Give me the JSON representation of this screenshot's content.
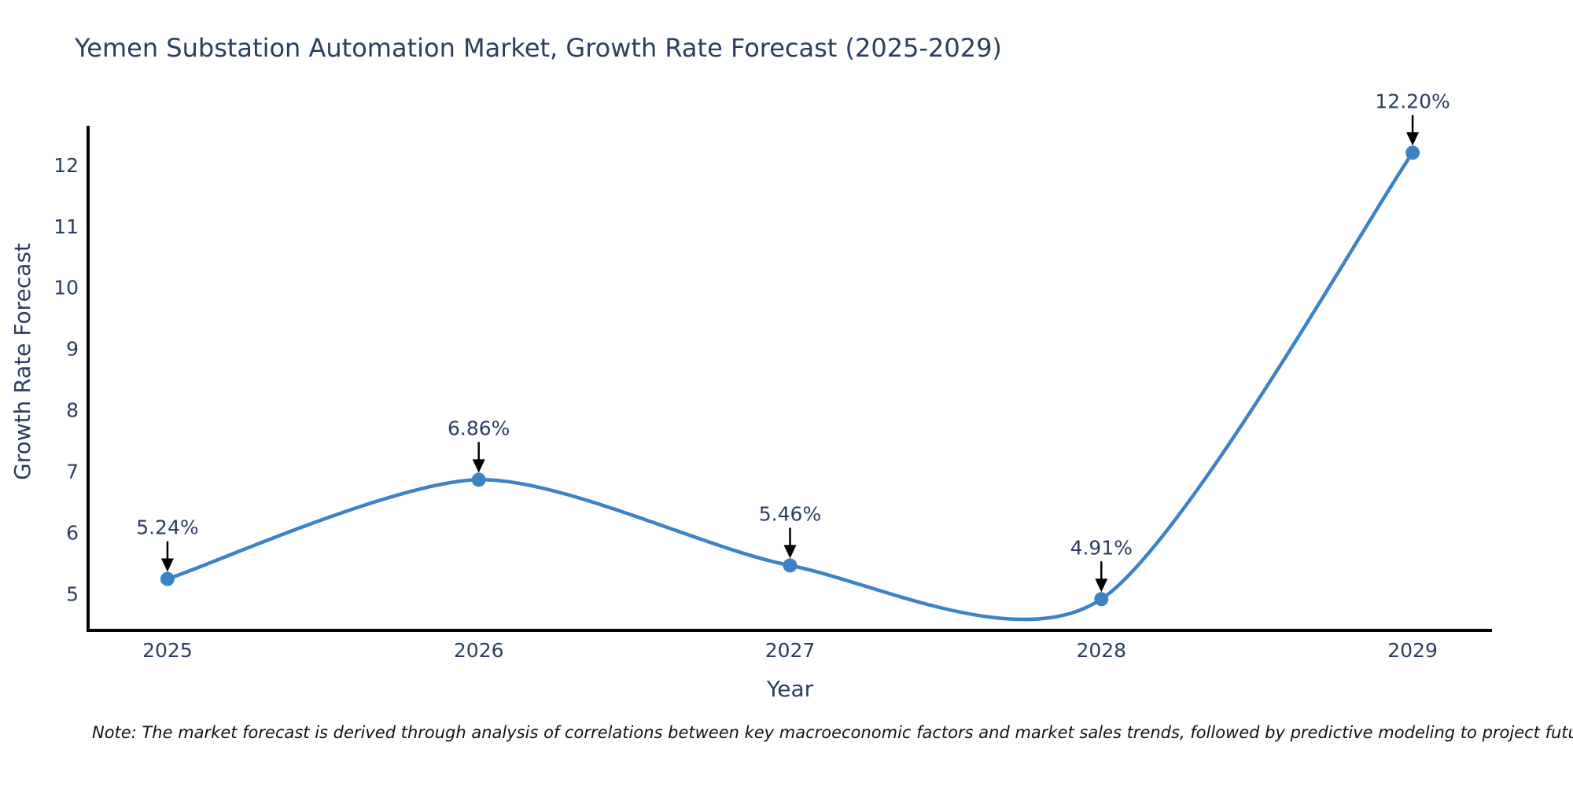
{
  "title": "Yemen Substation Automation Market, Growth Rate Forecast (2025-2029)",
  "note": "Note: The market forecast is derived through analysis of correlations between key macroeconomic factors and market sales trends, followed by predictive modeling to project future sales.",
  "chart_data": {
    "type": "line",
    "title": "Yemen Substation Automation Market, Growth Rate Forecast (2025-2029)",
    "xlabel": "Year",
    "ylabel": "Growth Rate Forecast",
    "x": [
      2025,
      2026,
      2027,
      2028,
      2029
    ],
    "values": [
      5.24,
      6.86,
      5.46,
      4.91,
      12.2
    ],
    "point_labels": [
      "5.24%",
      "6.86%",
      "5.46%",
      "4.91%",
      "12.20%"
    ],
    "x_ticks": [
      "2025",
      "2026",
      "2027",
      "2028",
      "2029"
    ],
    "y_ticks": [
      5,
      6,
      7,
      8,
      9,
      10,
      11,
      12
    ],
    "xlim": [
      2024.745,
      2029.255
    ],
    "ylim": [
      4.4,
      12.64
    ],
    "grid": false,
    "legend": "none",
    "line_shape": "spline",
    "annotations_have_arrows": true,
    "colors": {
      "line": "#3d82c4",
      "marker": "#3d82c4",
      "text": "#2a3f5f",
      "axis": "#000000",
      "arrow": "#000000",
      "background": "#ffffff",
      "note_text": "#111111"
    }
  }
}
